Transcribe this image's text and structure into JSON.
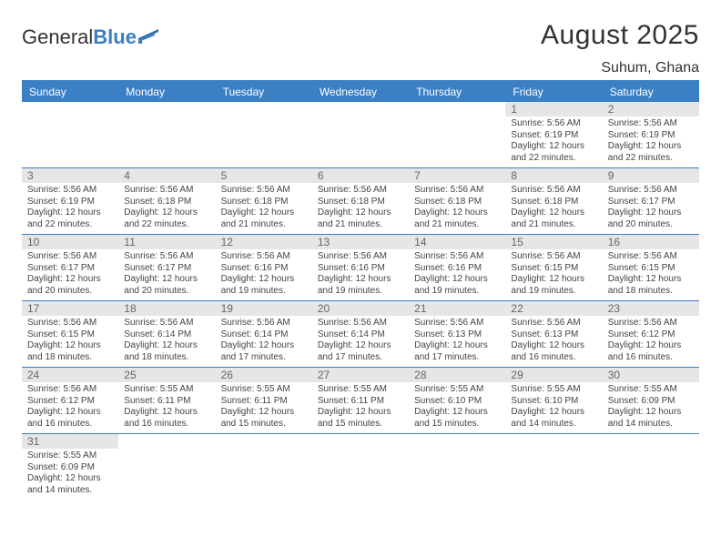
{
  "logo": {
    "text1": "General",
    "text2": "Blue"
  },
  "title": {
    "month": "August 2025",
    "location": "Suhum, Ghana"
  },
  "colors": {
    "brand_blue": "#3b7fc4",
    "header_gray": "#e6e6e6",
    "text": "#444444",
    "background": "#ffffff"
  },
  "weekdays": [
    "Sunday",
    "Monday",
    "Tuesday",
    "Wednesday",
    "Thursday",
    "Friday",
    "Saturday"
  ],
  "weeks": [
    [
      {
        "blank": true
      },
      {
        "blank": true
      },
      {
        "blank": true
      },
      {
        "blank": true
      },
      {
        "blank": true
      },
      {
        "day": "1",
        "sunrise": "Sunrise: 5:56 AM",
        "sunset": "Sunset: 6:19 PM",
        "daylight": "Daylight: 12 hours and 22 minutes."
      },
      {
        "day": "2",
        "sunrise": "Sunrise: 5:56 AM",
        "sunset": "Sunset: 6:19 PM",
        "daylight": "Daylight: 12 hours and 22 minutes."
      }
    ],
    [
      {
        "day": "3",
        "sunrise": "Sunrise: 5:56 AM",
        "sunset": "Sunset: 6:19 PM",
        "daylight": "Daylight: 12 hours and 22 minutes."
      },
      {
        "day": "4",
        "sunrise": "Sunrise: 5:56 AM",
        "sunset": "Sunset: 6:18 PM",
        "daylight": "Daylight: 12 hours and 22 minutes."
      },
      {
        "day": "5",
        "sunrise": "Sunrise: 5:56 AM",
        "sunset": "Sunset: 6:18 PM",
        "daylight": "Daylight: 12 hours and 21 minutes."
      },
      {
        "day": "6",
        "sunrise": "Sunrise: 5:56 AM",
        "sunset": "Sunset: 6:18 PM",
        "daylight": "Daylight: 12 hours and 21 minutes."
      },
      {
        "day": "7",
        "sunrise": "Sunrise: 5:56 AM",
        "sunset": "Sunset: 6:18 PM",
        "daylight": "Daylight: 12 hours and 21 minutes."
      },
      {
        "day": "8",
        "sunrise": "Sunrise: 5:56 AM",
        "sunset": "Sunset: 6:18 PM",
        "daylight": "Daylight: 12 hours and 21 minutes."
      },
      {
        "day": "9",
        "sunrise": "Sunrise: 5:56 AM",
        "sunset": "Sunset: 6:17 PM",
        "daylight": "Daylight: 12 hours and 20 minutes."
      }
    ],
    [
      {
        "day": "10",
        "sunrise": "Sunrise: 5:56 AM",
        "sunset": "Sunset: 6:17 PM",
        "daylight": "Daylight: 12 hours and 20 minutes."
      },
      {
        "day": "11",
        "sunrise": "Sunrise: 5:56 AM",
        "sunset": "Sunset: 6:17 PM",
        "daylight": "Daylight: 12 hours and 20 minutes."
      },
      {
        "day": "12",
        "sunrise": "Sunrise: 5:56 AM",
        "sunset": "Sunset: 6:16 PM",
        "daylight": "Daylight: 12 hours and 19 minutes."
      },
      {
        "day": "13",
        "sunrise": "Sunrise: 5:56 AM",
        "sunset": "Sunset: 6:16 PM",
        "daylight": "Daylight: 12 hours and 19 minutes."
      },
      {
        "day": "14",
        "sunrise": "Sunrise: 5:56 AM",
        "sunset": "Sunset: 6:16 PM",
        "daylight": "Daylight: 12 hours and 19 minutes."
      },
      {
        "day": "15",
        "sunrise": "Sunrise: 5:56 AM",
        "sunset": "Sunset: 6:15 PM",
        "daylight": "Daylight: 12 hours and 19 minutes."
      },
      {
        "day": "16",
        "sunrise": "Sunrise: 5:56 AM",
        "sunset": "Sunset: 6:15 PM",
        "daylight": "Daylight: 12 hours and 18 minutes."
      }
    ],
    [
      {
        "day": "17",
        "sunrise": "Sunrise: 5:56 AM",
        "sunset": "Sunset: 6:15 PM",
        "daylight": "Daylight: 12 hours and 18 minutes."
      },
      {
        "day": "18",
        "sunrise": "Sunrise: 5:56 AM",
        "sunset": "Sunset: 6:14 PM",
        "daylight": "Daylight: 12 hours and 18 minutes."
      },
      {
        "day": "19",
        "sunrise": "Sunrise: 5:56 AM",
        "sunset": "Sunset: 6:14 PM",
        "daylight": "Daylight: 12 hours and 17 minutes."
      },
      {
        "day": "20",
        "sunrise": "Sunrise: 5:56 AM",
        "sunset": "Sunset: 6:14 PM",
        "daylight": "Daylight: 12 hours and 17 minutes."
      },
      {
        "day": "21",
        "sunrise": "Sunrise: 5:56 AM",
        "sunset": "Sunset: 6:13 PM",
        "daylight": "Daylight: 12 hours and 17 minutes."
      },
      {
        "day": "22",
        "sunrise": "Sunrise: 5:56 AM",
        "sunset": "Sunset: 6:13 PM",
        "daylight": "Daylight: 12 hours and 16 minutes."
      },
      {
        "day": "23",
        "sunrise": "Sunrise: 5:56 AM",
        "sunset": "Sunset: 6:12 PM",
        "daylight": "Daylight: 12 hours and 16 minutes."
      }
    ],
    [
      {
        "day": "24",
        "sunrise": "Sunrise: 5:56 AM",
        "sunset": "Sunset: 6:12 PM",
        "daylight": "Daylight: 12 hours and 16 minutes."
      },
      {
        "day": "25",
        "sunrise": "Sunrise: 5:55 AM",
        "sunset": "Sunset: 6:11 PM",
        "daylight": "Daylight: 12 hours and 16 minutes."
      },
      {
        "day": "26",
        "sunrise": "Sunrise: 5:55 AM",
        "sunset": "Sunset: 6:11 PM",
        "daylight": "Daylight: 12 hours and 15 minutes."
      },
      {
        "day": "27",
        "sunrise": "Sunrise: 5:55 AM",
        "sunset": "Sunset: 6:11 PM",
        "daylight": "Daylight: 12 hours and 15 minutes."
      },
      {
        "day": "28",
        "sunrise": "Sunrise: 5:55 AM",
        "sunset": "Sunset: 6:10 PM",
        "daylight": "Daylight: 12 hours and 15 minutes."
      },
      {
        "day": "29",
        "sunrise": "Sunrise: 5:55 AM",
        "sunset": "Sunset: 6:10 PM",
        "daylight": "Daylight: 12 hours and 14 minutes."
      },
      {
        "day": "30",
        "sunrise": "Sunrise: 5:55 AM",
        "sunset": "Sunset: 6:09 PM",
        "daylight": "Daylight: 12 hours and 14 minutes."
      }
    ],
    [
      {
        "day": "31",
        "sunrise": "Sunrise: 5:55 AM",
        "sunset": "Sunset: 6:09 PM",
        "daylight": "Daylight: 12 hours and 14 minutes.",
        "lastrow": true
      },
      {
        "blank": true,
        "lastrow": true
      },
      {
        "blank": true,
        "lastrow": true
      },
      {
        "blank": true,
        "lastrow": true
      },
      {
        "blank": true,
        "lastrow": true
      },
      {
        "blank": true,
        "lastrow": true
      },
      {
        "blank": true,
        "lastrow": true
      }
    ]
  ]
}
